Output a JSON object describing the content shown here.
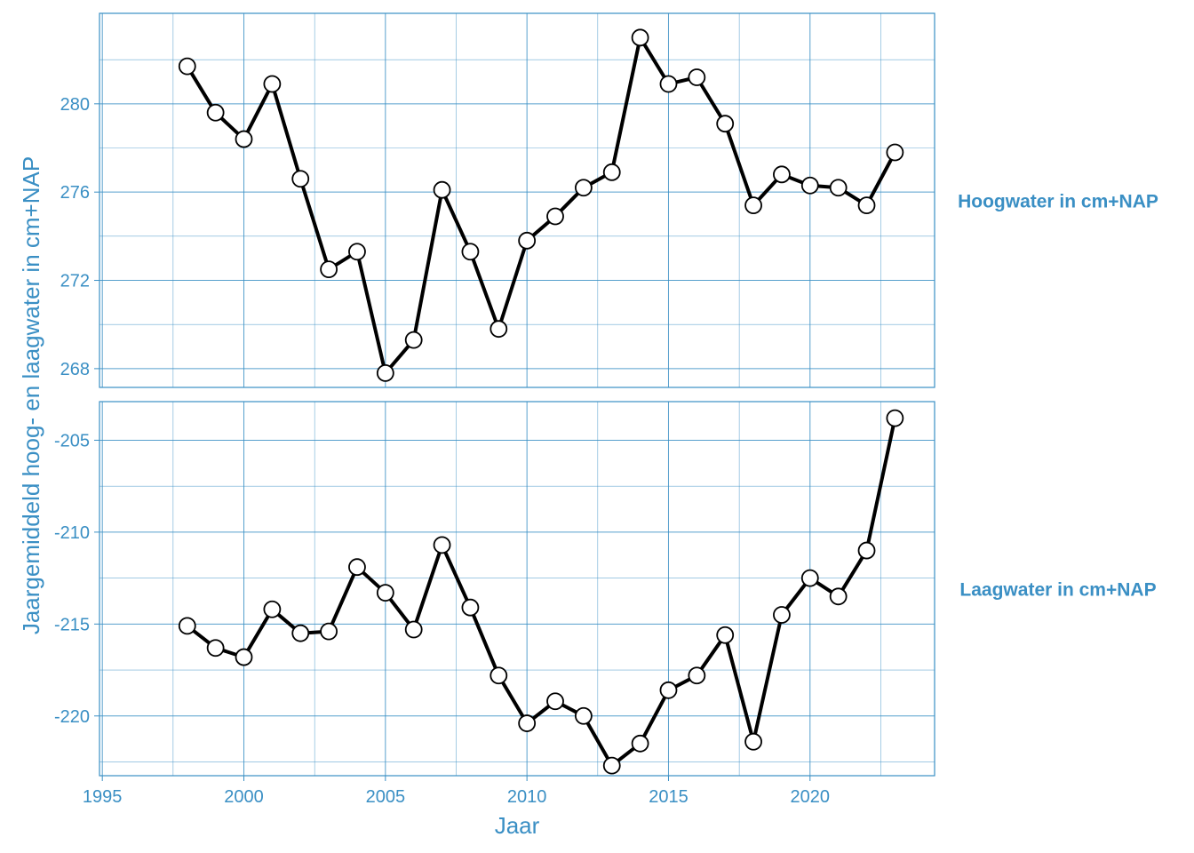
{
  "chart_data": {
    "type": "line",
    "xlabel": "Jaar",
    "ylabel": "Jaargemiddeld hoog- en laagwater in cm+NAP",
    "x_ticks": [
      1995,
      2000,
      2005,
      2010,
      2015,
      2020
    ],
    "xlim": [
      1994.9,
      2024.4
    ],
    "grid": true,
    "colors": {
      "accent": "#3a8fc4",
      "line": "#000000",
      "marker_fill": "#ffffff"
    },
    "x": [
      1998,
      1999,
      2000,
      2001,
      2002,
      2003,
      2004,
      2005,
      2006,
      2007,
      2008,
      2009,
      2010,
      2011,
      2012,
      2013,
      2014,
      2015,
      2016,
      2017,
      2018,
      2019,
      2020,
      2021,
      2022,
      2023
    ],
    "panels": [
      {
        "name": "Hoogwater in cm+NAP",
        "ylim": [
          267.15,
          284.1
        ],
        "y_ticks": [
          268,
          272,
          276,
          280
        ],
        "y_tick_labels": [
          "268",
          "272",
          "276",
          "280"
        ],
        "values": [
          281.7,
          279.6,
          278.4,
          280.9,
          276.6,
          272.5,
          273.3,
          267.8,
          269.3,
          276.1,
          273.3,
          269.8,
          273.8,
          274.9,
          276.2,
          276.9,
          283.0,
          280.9,
          281.2,
          279.1,
          275.4,
          276.8,
          276.3,
          276.2,
          275.4,
          277.8
        ]
      },
      {
        "name": "Laagwater in cm+NAP",
        "ylim": [
          -223.25,
          -202.9
        ],
        "y_ticks": [
          -220,
          -215,
          -210,
          -205
        ],
        "y_tick_labels": [
          "-220",
          "-215",
          "-210",
          "-205"
        ],
        "values": [
          -215.1,
          -216.3,
          -216.8,
          -214.2,
          -215.5,
          -215.4,
          -211.9,
          -213.3,
          -215.3,
          -210.7,
          -214.1,
          -217.8,
          -220.4,
          -219.2,
          -220.0,
          -222.7,
          -221.5,
          -218.6,
          -217.8,
          -215.6,
          -221.4,
          -214.5,
          -212.5,
          -213.5,
          -211.0,
          -203.8
        ]
      }
    ]
  }
}
